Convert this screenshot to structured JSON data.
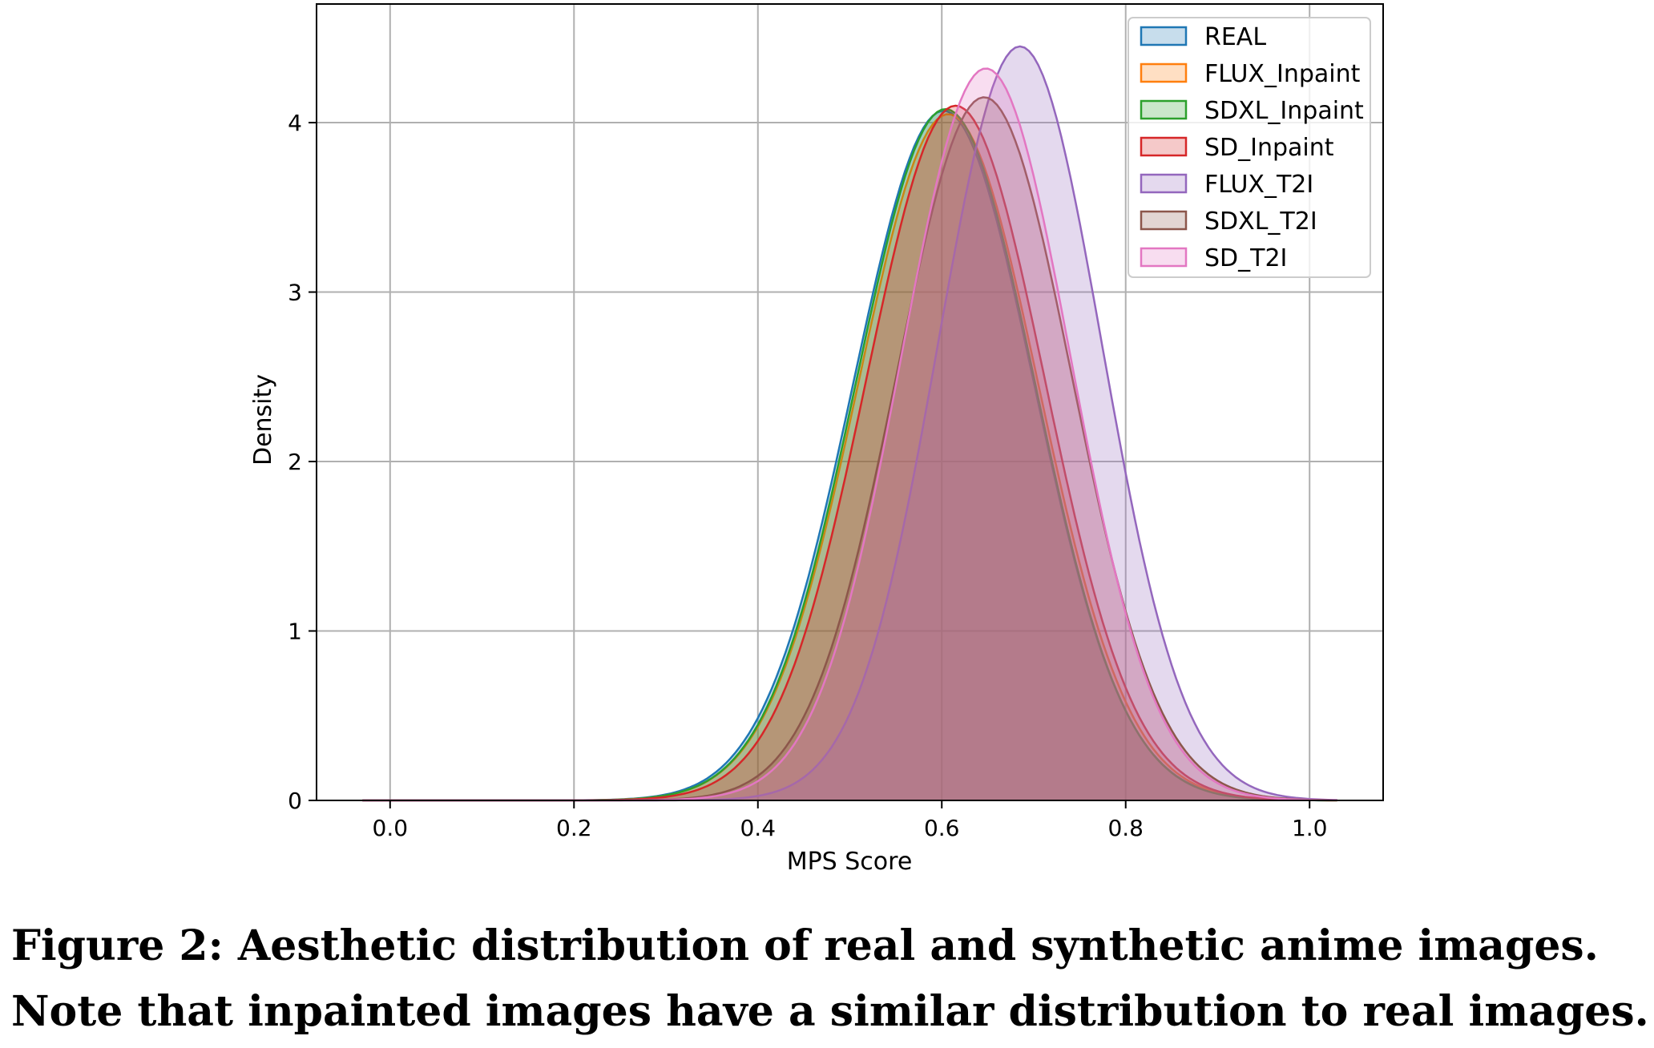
{
  "chart_data": {
    "type": "area",
    "xlabel": "MPS Score",
    "ylabel": "Density",
    "xlim": [
      -0.08,
      1.08
    ],
    "ylim": [
      0,
      4.7
    ],
    "x_ticks": [
      "0.0",
      "0.2",
      "0.4",
      "0.6",
      "0.8",
      "1.0"
    ],
    "y_ticks": [
      "0",
      "1",
      "2",
      "3",
      "4"
    ],
    "grid": true,
    "legend_position": "top-right",
    "series": [
      {
        "name": "REAL",
        "color": "#1f77b4",
        "mean": 0.602,
        "sd": 0.098,
        "peak": 4.07
      },
      {
        "name": "FLUX_Inpaint",
        "color": "#ff7f0e",
        "mean": 0.607,
        "sd": 0.098,
        "peak": 4.05
      },
      {
        "name": "SDXL_Inpaint",
        "color": "#2ca02c",
        "mean": 0.604,
        "sd": 0.097,
        "peak": 4.08
      },
      {
        "name": "SD_Inpaint",
        "color": "#d62728",
        "mean": 0.615,
        "sd": 0.097,
        "peak": 4.1
      },
      {
        "name": "FLUX_T2I",
        "color": "#9467bd",
        "mean": 0.685,
        "sd": 0.089,
        "peak": 4.45
      },
      {
        "name": "SDXL_T2I",
        "color": "#8c564b",
        "mean": 0.646,
        "sd": 0.095,
        "peak": 4.15
      },
      {
        "name": "SD_T2I",
        "color": "#e377c2",
        "mean": 0.648,
        "sd": 0.092,
        "peak": 4.32
      }
    ]
  },
  "caption": {
    "line1": "Figure 2: Aesthetic distribution of real and synthetic anime images.",
    "line2": "Note that inpainted images have a similar distribution to real images."
  }
}
